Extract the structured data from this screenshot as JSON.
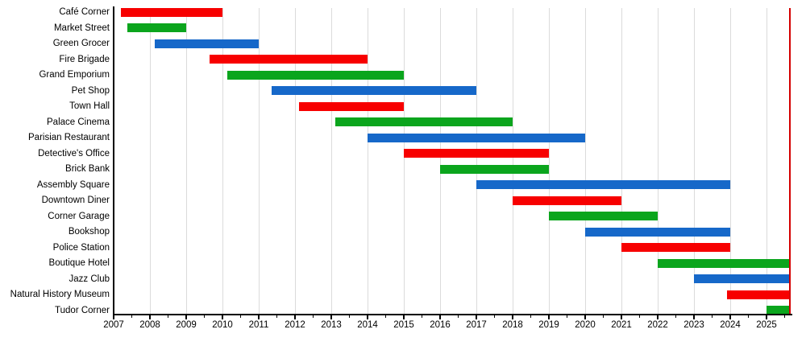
{
  "chart_data": {
    "type": "bar",
    "variant": "horizontal-gantt-timeline",
    "title": "",
    "xlabel": "",
    "ylabel": "",
    "legend": false,
    "grid": true,
    "x_axis": {
      "min": 2007,
      "max": 2025.75,
      "tick_labels": [
        "2007",
        "2008",
        "2009",
        "2010",
        "2011",
        "2012",
        "2013",
        "2014",
        "2015",
        "2016",
        "2017",
        "2018",
        "2019",
        "2020",
        "2021",
        "2022",
        "2023",
        "2024",
        "2025"
      ],
      "major_tick_step": 1,
      "minor_tick_step": 0.5
    },
    "today_line": {
      "x": 2025.65,
      "color": "#d40000"
    },
    "palette": {
      "red": "#f70000",
      "green": "#0ba51d",
      "blue": "#1668c9"
    },
    "gridline_color": "#dbdbdb",
    "categories": [
      "Café Corner",
      "Market Street",
      "Green Grocer",
      "Fire Brigade",
      "Grand Emporium",
      "Pet Shop",
      "Town Hall",
      "Palace Cinema",
      "Parisian Restaurant",
      "Detective's Office",
      "Brick Bank",
      "Assembly Square",
      "Downtown Diner",
      "Corner Garage",
      "Bookshop",
      "Police Station",
      "Boutique Hotel",
      "Jazz Club",
      "Natural History Museum",
      "Tudor Corner"
    ],
    "series": [
      {
        "name": "Café Corner",
        "start": 2007.2,
        "end": 2010.0,
        "color": "red",
        "ongoing": false
      },
      {
        "name": "Market Street",
        "start": 2007.37,
        "end": 2009.0,
        "color": "green",
        "ongoing": false
      },
      {
        "name": "Green Grocer",
        "start": 2008.13,
        "end": 2011.0,
        "color": "blue",
        "ongoing": false
      },
      {
        "name": "Fire Brigade",
        "start": 2009.65,
        "end": 2014.0,
        "color": "red",
        "ongoing": false
      },
      {
        "name": "Grand Emporium",
        "start": 2010.13,
        "end": 2015.0,
        "color": "green",
        "ongoing": false
      },
      {
        "name": "Pet Shop",
        "start": 2011.36,
        "end": 2017.0,
        "color": "blue",
        "ongoing": false
      },
      {
        "name": "Town Hall",
        "start": 2012.12,
        "end": 2015.0,
        "color": "red",
        "ongoing": false
      },
      {
        "name": "Palace Cinema",
        "start": 2013.12,
        "end": 2018.0,
        "color": "green",
        "ongoing": false
      },
      {
        "name": "Parisian Restaurant",
        "start": 2014.0,
        "end": 2020.0,
        "color": "blue",
        "ongoing": false
      },
      {
        "name": "Detective's Office",
        "start": 2015.0,
        "end": 2019.0,
        "color": "red",
        "ongoing": false
      },
      {
        "name": "Brick Bank",
        "start": 2016.0,
        "end": 2019.0,
        "color": "green",
        "ongoing": false
      },
      {
        "name": "Assembly Square",
        "start": 2017.0,
        "end": 2024.0,
        "color": "blue",
        "ongoing": false
      },
      {
        "name": "Downtown Diner",
        "start": 2018.0,
        "end": 2021.0,
        "color": "red",
        "ongoing": false
      },
      {
        "name": "Corner Garage",
        "start": 2019.0,
        "end": 2022.0,
        "color": "green",
        "ongoing": false
      },
      {
        "name": "Bookshop",
        "start": 2020.0,
        "end": 2024.0,
        "color": "blue",
        "ongoing": false
      },
      {
        "name": "Police Station",
        "start": 2021.0,
        "end": 2024.0,
        "color": "red",
        "ongoing": false
      },
      {
        "name": "Boutique Hotel",
        "start": 2022.0,
        "end": 2025.65,
        "color": "green",
        "ongoing": true
      },
      {
        "name": "Jazz Club",
        "start": 2023.0,
        "end": 2025.65,
        "color": "blue",
        "ongoing": true
      },
      {
        "name": "Natural History Museum",
        "start": 2023.9,
        "end": 2025.65,
        "color": "red",
        "ongoing": true
      },
      {
        "name": "Tudor Corner",
        "start": 2025.0,
        "end": 2025.65,
        "color": "green",
        "ongoing": true
      }
    ]
  }
}
